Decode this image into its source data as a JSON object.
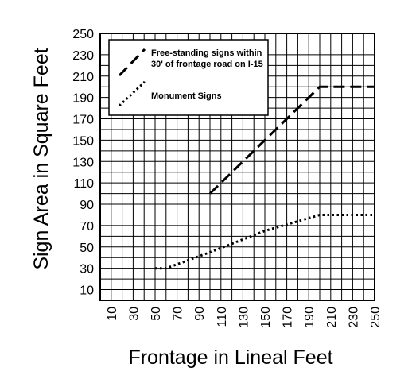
{
  "chart_data": {
    "type": "line",
    "xlabel": "Frontage in Lineal Feet",
    "ylabel": "Sign Area in Square Feet",
    "xlim": [
      0,
      250
    ],
    "ylim": [
      0,
      250
    ],
    "x_ticks": [
      10,
      30,
      50,
      70,
      90,
      110,
      130,
      150,
      170,
      190,
      210,
      230,
      250
    ],
    "y_ticks": [
      10,
      30,
      50,
      70,
      90,
      110,
      130,
      150,
      170,
      190,
      210,
      230,
      250
    ],
    "grid": true,
    "legend_position": "top-left",
    "series": [
      {
        "name": "Free-standing signs within 30' of frontage road on I-15",
        "name_lines": [
          "Free-standing signs within",
          "30' of frontage road on I-15"
        ],
        "style": "dashed",
        "x": [
          100,
          200,
          250
        ],
        "y": [
          100,
          200,
          200
        ]
      },
      {
        "name": "Monument Signs",
        "name_lines": [
          "Monument Signs"
        ],
        "style": "dotted",
        "x": [
          50,
          60,
          100,
          150,
          200,
          250
        ],
        "y": [
          30,
          30,
          45,
          65,
          80,
          80
        ]
      }
    ],
    "colors": {
      "line": "#000000",
      "grid": "#000000",
      "background": "#ffffff"
    }
  }
}
